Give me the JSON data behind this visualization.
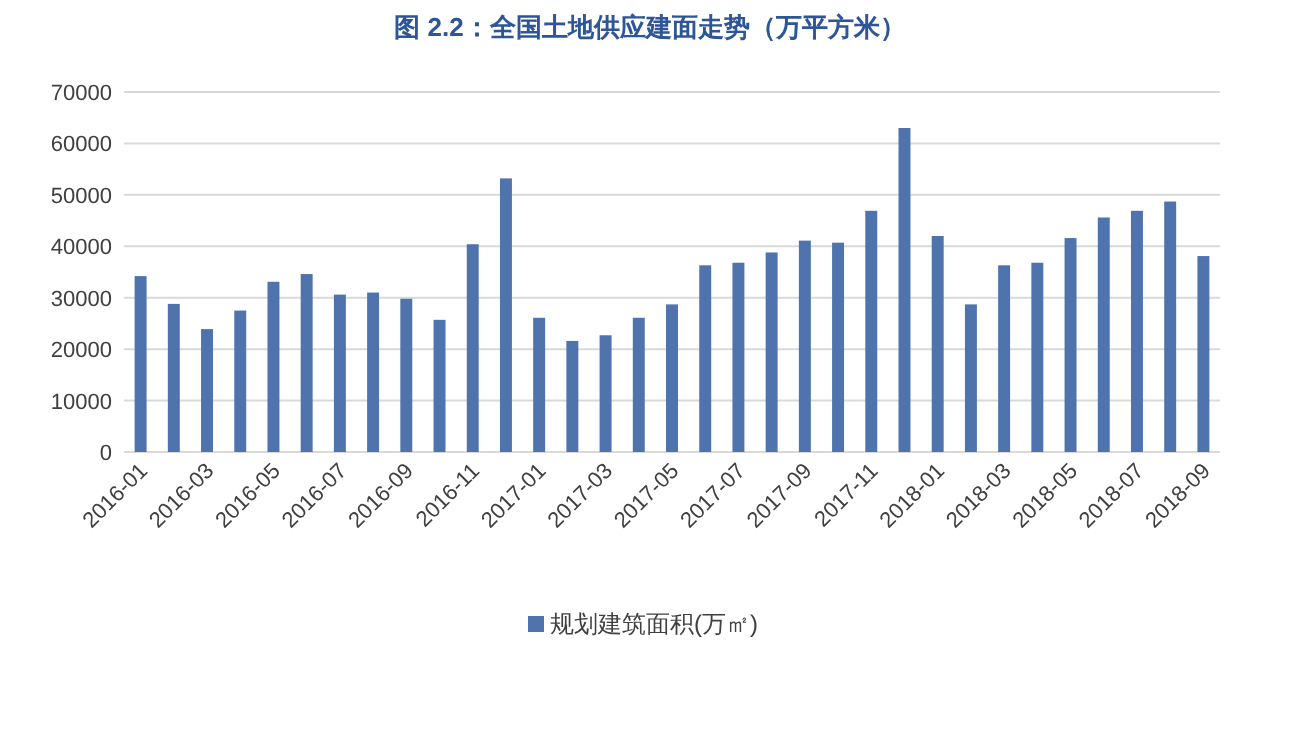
{
  "chart_data": {
    "type": "bar",
    "title": "图 2.2：全国土地供应建面走势（万平方米）",
    "categories": [
      "2016-01",
      null,
      "2016-03",
      null,
      "2016-05",
      null,
      "2016-07",
      null,
      "2016-09",
      null,
      "2016-11",
      null,
      "2017-01",
      null,
      "2017-03",
      null,
      "2017-05",
      null,
      "2017-07",
      null,
      "2017-09",
      null,
      "2017-11",
      null,
      "2018-01",
      null,
      "2018-03",
      null,
      "2018-05",
      null,
      "2018-07",
      null,
      "2018-09"
    ],
    "series": [
      {
        "name": "规划建筑面积(万㎡)",
        "color": "#4f73ad",
        "values": [
          34200,
          28800,
          23900,
          27500,
          33100,
          34600,
          30600,
          31000,
          29800,
          25700,
          40400,
          53200,
          26100,
          21600,
          22700,
          26100,
          28700,
          36300,
          36800,
          38800,
          41100,
          40700,
          46900,
          63000,
          42000,
          28700,
          36300,
          36800,
          41600,
          45600,
          46900,
          48700,
          38100
        ]
      }
    ],
    "ylim": [
      0,
      70000
    ],
    "yticks": [
      0,
      10000,
      20000,
      30000,
      40000,
      50000,
      60000,
      70000
    ],
    "grid": "y",
    "legend": "bottom"
  }
}
